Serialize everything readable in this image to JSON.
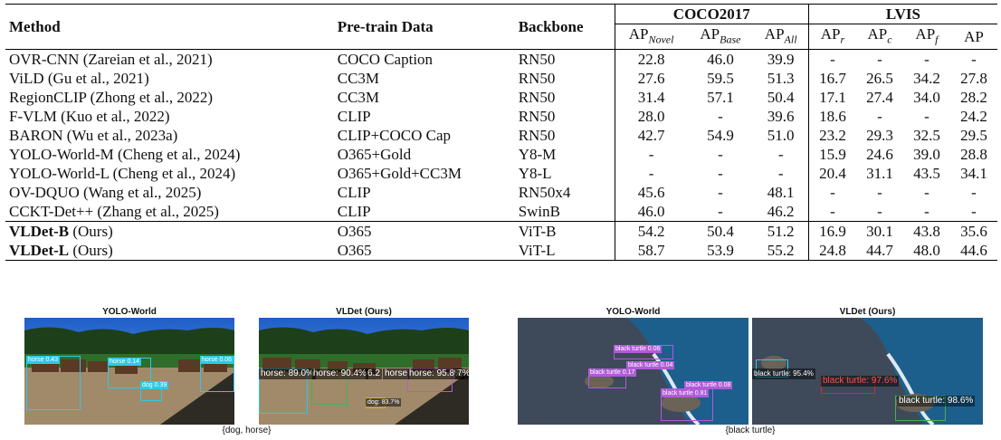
{
  "table": {
    "headers": {
      "method": "Method",
      "pretrain": "Pre-train Data",
      "backbone": "Backbone",
      "coco": "COCO2017",
      "lvis": "LVIS",
      "ap": "AP",
      "sub_novel": "Novel",
      "sub_base": "Base",
      "sub_all": "All",
      "sub_r": "r",
      "sub_c": "c",
      "sub_f": "f"
    },
    "rows": [
      {
        "method": "OVR-CNN (Zareian et al., 2021)",
        "method_bold": "",
        "method_rest": "",
        "data": "COCO Caption",
        "backbone": "RN50",
        "novel": "22.8",
        "base": "46.0",
        "all": "39.9",
        "apr": "-",
        "apc": "-",
        "apf": "-",
        "ap": "-"
      },
      {
        "method": "ViLD (Gu et al., 2021)",
        "data": "CC3M",
        "backbone": "RN50",
        "novel": "27.6",
        "base": "59.5",
        "all": "51.3",
        "apr": "16.7",
        "apc": "26.5",
        "apf": "34.2",
        "ap": "27.8"
      },
      {
        "method": "RegionCLIP (Zhong et al., 2022)",
        "data": "CC3M",
        "backbone": "RN50",
        "novel": "31.4",
        "base": "57.1",
        "all": "50.4",
        "apr": "17.1",
        "apc": "27.4",
        "apf": "34.0",
        "ap": "28.2"
      },
      {
        "method": "F-VLM (Kuo et al., 2022)",
        "data": "CLIP",
        "backbone": "RN50",
        "novel": "28.0",
        "base": "-",
        "all": "39.6",
        "apr": "18.6",
        "apc": "-",
        "apf": "-",
        "ap": "24.2"
      },
      {
        "method": "BARON (Wu et al., 2023a)",
        "data": "CLIP+COCO Cap",
        "backbone": "RN50",
        "novel": "42.7",
        "base": "54.9",
        "all": "51.0",
        "apr": "23.2",
        "apc": "29.3",
        "apf": "32.5",
        "ap": "29.5"
      },
      {
        "method": "YOLO-World-M (Cheng et al., 2024)",
        "data": "O365+Gold",
        "backbone": "Y8-M",
        "novel": "-",
        "base": "-",
        "all": "-",
        "apr": "15.9",
        "apc": "24.6",
        "apf": "39.0",
        "ap": "28.8"
      },
      {
        "method": "YOLO-World-L (Cheng et al., 2024)",
        "data": "O365+Gold+CC3M",
        "backbone": "Y8-L",
        "novel": "-",
        "base": "-",
        "all": "-",
        "apr": "20.4",
        "apc": "31.1",
        "apf": "43.5",
        "ap": "34.1"
      },
      {
        "method": "OV-DQUO (Wang et al., 2025)",
        "data": "CLIP",
        "backbone": "RN50x4",
        "novel": "45.6",
        "base": "-",
        "all": "48.1",
        "apr": "-",
        "apc": "-",
        "apf": "-",
        "ap": "-"
      },
      {
        "method": "CCKT-Det++ (Zhang et al., 2025)",
        "data": "CLIP",
        "backbone": "SwinB",
        "novel": "46.0",
        "base": "-",
        "all": "46.2",
        "apr": "-",
        "apc": "-",
        "apf": "-",
        "ap": "-"
      }
    ],
    "ours": [
      {
        "method_bold": "VLDet-B",
        "method_rest": " (Ours)",
        "data": "O365",
        "backbone": "ViT-B",
        "novel": "54.2",
        "base": "50.4",
        "all": "51.2",
        "apr": "16.9",
        "apc": "30.1",
        "apf": "43.8",
        "ap": "35.6"
      },
      {
        "method_bold": "VLDet-L",
        "method_rest": " (Ours)",
        "data": "O365",
        "backbone": "ViT-L",
        "novel": "58.7",
        "base": "53.9",
        "all": "55.2",
        "apr": "24.8",
        "apc": "44.7",
        "apf": "48.0",
        "ap": "44.6"
      }
    ]
  },
  "figures": {
    "left": {
      "titles": [
        "YOLO-World",
        "VLDet (Ours)"
      ],
      "caption": "{dog, horse}",
      "yolo_labels": [
        "horse 0.43",
        "horse 0.14",
        "horse 0.06",
        "dog 0.39"
      ],
      "vldet_labels": [
        "horse: 89.0%",
        "horse: 90.4%",
        "6.2",
        "horse",
        "horse: 95.8%",
        "7%",
        "dog: 83.7%"
      ]
    },
    "right": {
      "titles": [
        "YOLO-World",
        "VLDet (Ours)"
      ],
      "caption": "{black turtle}",
      "yolo_labels": [
        "black turtle 0.06",
        "black turtle 0.04",
        "black turtle 0.17",
        "black turtle 0.08",
        "black turtle 0.81"
      ],
      "vldet_labels": [
        "black turtle: 95.4%",
        "black turtle: 97.6%",
        "black turtle: 98.6%"
      ]
    }
  },
  "colors": {
    "box_cyan": "#2ec9e6",
    "box_purple": "#b05bd8",
    "box_green": "#4caf50",
    "box_red": "#d9292b"
  }
}
